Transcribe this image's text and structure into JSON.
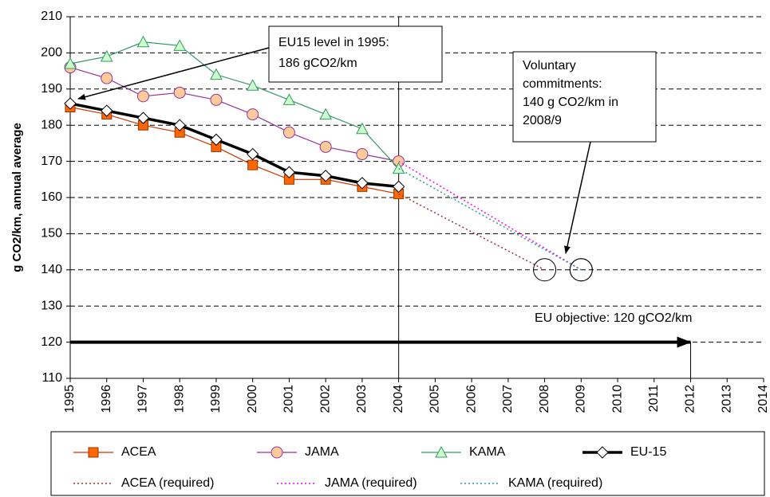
{
  "chart_data": {
    "type": "line",
    "y_label": "g CO2/km, annual average",
    "xlim": [
      1995,
      2014
    ],
    "xticks": [
      1995,
      1996,
      1997,
      1998,
      1999,
      2000,
      2001,
      2002,
      2003,
      2004,
      2005,
      2006,
      2007,
      2008,
      2009,
      2010,
      2011,
      2012,
      2013,
      2014
    ],
    "ylim": [
      110,
      210
    ],
    "yticks": [
      110,
      120,
      130,
      140,
      150,
      160,
      170,
      180,
      190,
      200,
      210
    ],
    "grid": true,
    "legend": "bottom",
    "series": [
      {
        "name": "ACEA",
        "color": "#cc3300",
        "marker": "square",
        "marker_color": "#ff6600",
        "line_style": "solid",
        "x": [
          1995,
          1996,
          1997,
          1998,
          1999,
          2000,
          2001,
          2002,
          2003,
          2004
        ],
        "values": [
          185,
          183,
          180,
          178,
          174,
          169,
          165,
          165,
          163,
          161
        ]
      },
      {
        "name": "JAMA",
        "color": "#993399",
        "marker": "circle",
        "marker_color": "#ffcc99",
        "line_style": "solid",
        "x": [
          1995,
          1996,
          1997,
          1998,
          1999,
          2000,
          2001,
          2002,
          2003,
          2004
        ],
        "values": [
          196,
          193,
          188,
          189,
          187,
          183,
          178,
          174,
          172,
          170
        ]
      },
      {
        "name": "KAMA",
        "color": "#339966",
        "marker": "triangle",
        "marker_color": "#ccffcc",
        "line_style": "solid",
        "x": [
          1995,
          1996,
          1997,
          1998,
          1999,
          2000,
          2001,
          2002,
          2003,
          2004
        ],
        "values": [
          197,
          199,
          203,
          202,
          194,
          191,
          187,
          183,
          179,
          168
        ]
      },
      {
        "name": "EU-15",
        "color": "#000000",
        "marker": "diamond",
        "marker_color": "#ffffff",
        "line_style": "thick",
        "x": [
          1995,
          1996,
          1997,
          1998,
          1999,
          2000,
          2001,
          2002,
          2003,
          2004
        ],
        "values": [
          186,
          184,
          182,
          180,
          176,
          172,
          167,
          166,
          164,
          163
        ]
      },
      {
        "name": "ACEA (required)",
        "color": "#993333",
        "marker": "none",
        "line_style": "dotted",
        "x": [
          2004,
          2008
        ],
        "values": [
          161,
          140
        ]
      },
      {
        "name": "JAMA (required)",
        "color": "#ff00ff",
        "marker": "none",
        "line_style": "dotted",
        "x": [
          2004,
          2009
        ],
        "values": [
          170,
          140
        ]
      },
      {
        "name": "KAMA (required)",
        "color": "#339999",
        "marker": "none",
        "line_style": "dotted",
        "x": [
          2004,
          2009
        ],
        "values": [
          168,
          140
        ]
      }
    ],
    "vline": 2004,
    "objective": {
      "label": "EU objective: 120 gCO2/km",
      "value": 120,
      "x": [
        1995,
        2012
      ]
    },
    "annotations": [
      {
        "lines": [
          "EU15 level in 1995:",
          "186 gCO2/km"
        ]
      },
      {
        "lines": [
          "Voluntary",
          "commitments:",
          "140 g CO2/km in",
          "2008/9"
        ]
      }
    ]
  }
}
